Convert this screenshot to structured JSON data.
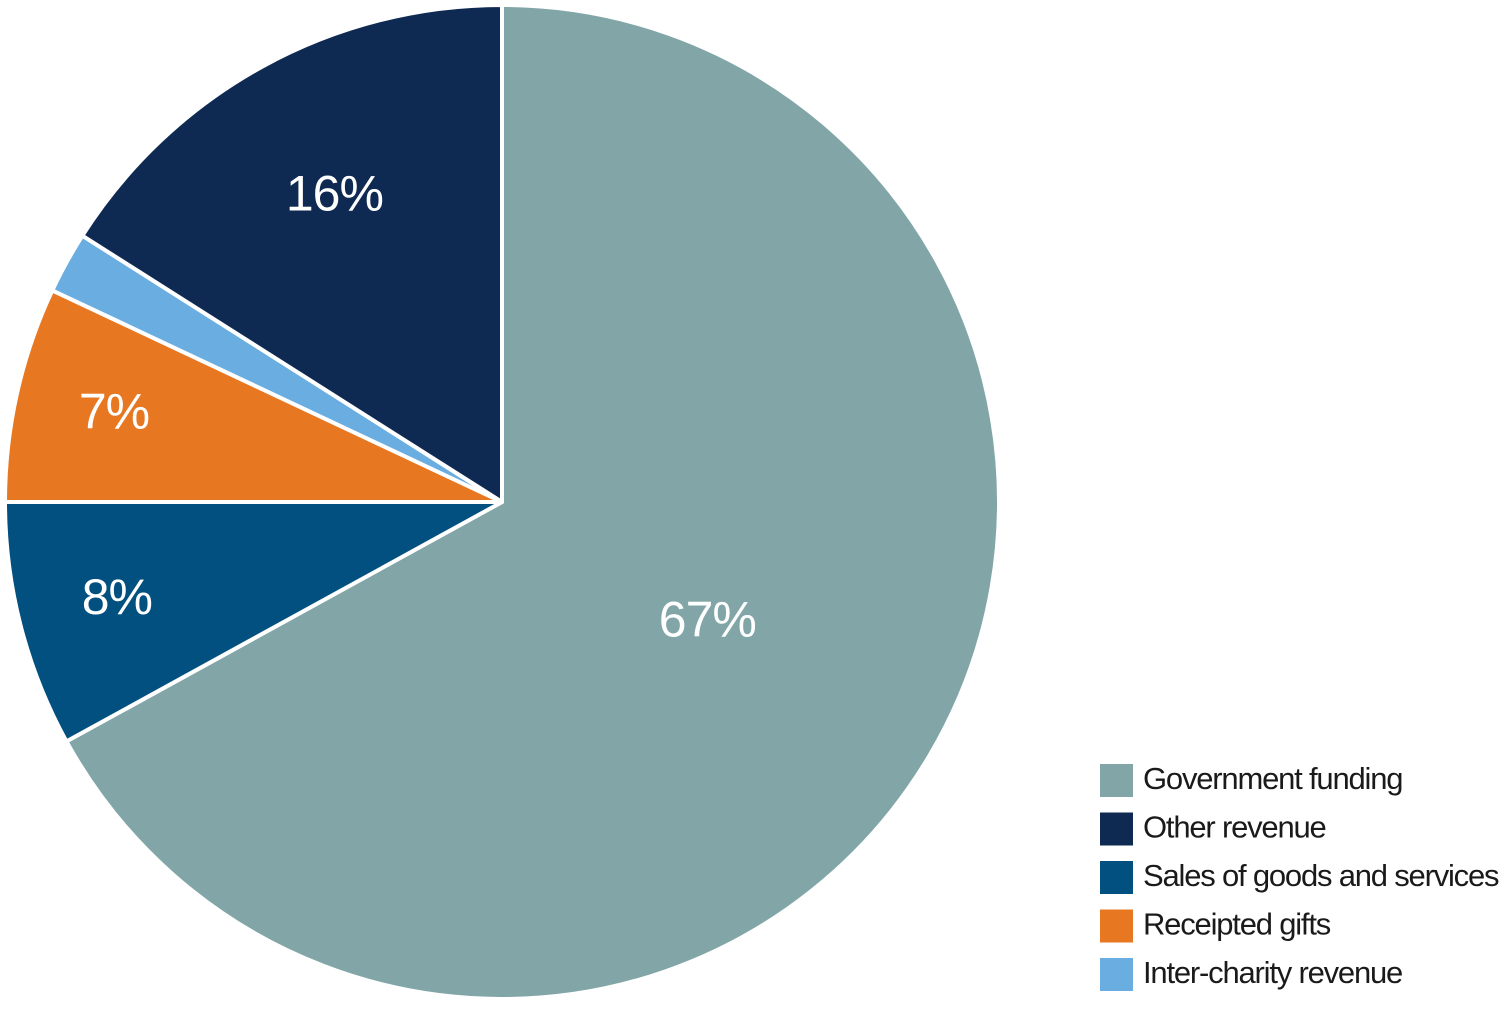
{
  "chart_data": {
    "type": "pie",
    "categories": [
      "Government funding",
      "Sales of goods and services",
      "Receipted gifts",
      "Inter-charity revenue",
      "Other revenue"
    ],
    "values": [
      67,
      8,
      7,
      2,
      16
    ],
    "value_labels": [
      "67%",
      "8%",
      "7%",
      null,
      "16%"
    ],
    "colors": [
      "#82a6a8",
      "#02507f",
      "#e87722",
      "#6aade0",
      "#0f2a52"
    ],
    "start_angle": 0,
    "direction": "clockwise",
    "legend": "bottom-right"
  }
}
